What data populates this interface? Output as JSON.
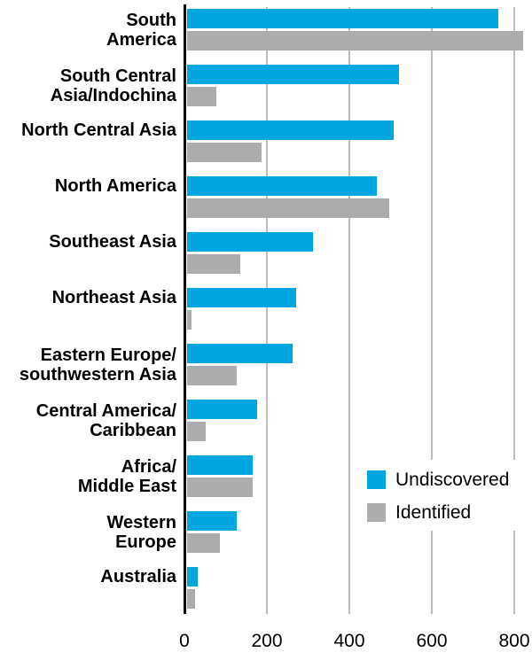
{
  "figure": {
    "background": "#FFFFFF",
    "text_color": "#000000"
  },
  "chart_data": {
    "type": "bar",
    "orientation": "horizontal",
    "title": "",
    "xlabel": "",
    "ylabel": "",
    "categories": [
      "South\nAmerica",
      "South Central\nAsia/Indochina",
      "North Central Asia",
      "North America",
      "Southeast Asia",
      "Northeast Asia",
      "Eastern Europe/\nsouthwestern Asia",
      "Central America/\nCaribbean",
      "Africa/\nMiddle East",
      "Western\nEurope",
      "Australia"
    ],
    "series": [
      {
        "name": "Undiscovered",
        "color": "#00A5E1",
        "values": [
          755,
          515,
          500,
          460,
          305,
          265,
          255,
          170,
          160,
          120,
          25
        ]
      },
      {
        "name": "Identified",
        "color": "#ACACAE",
        "values": [
          815,
          70,
          180,
          490,
          130,
          10,
          120,
          45,
          160,
          80,
          20
        ]
      }
    ],
    "x_axis": {
      "tick_labels": [
        "0",
        "200",
        "400",
        "600",
        "800"
      ],
      "tick_values": [
        0,
        200,
        400,
        600,
        800
      ],
      "range": [
        0,
        843
      ]
    },
    "grid": true,
    "gridline_color": "#BDBDBD",
    "axis_color": "#000000",
    "legend_position": "right-middle"
  },
  "legend": {
    "items": [
      {
        "label": "Undiscovered",
        "color": "#00A5E1"
      },
      {
        "label": "Identified",
        "color": "#ACACAE"
      }
    ]
  }
}
